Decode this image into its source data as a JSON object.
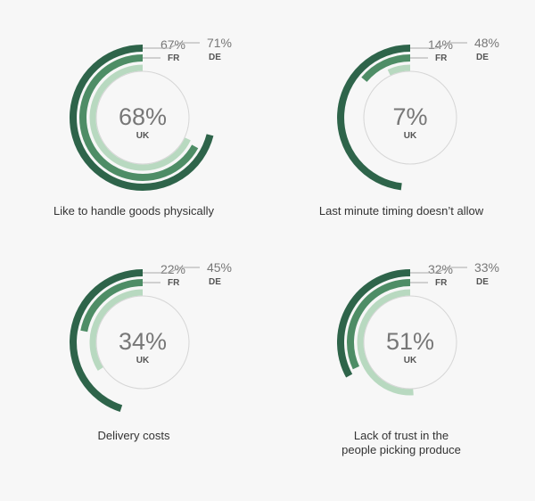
{
  "colors": {
    "uk": "#b8d9c0",
    "fr": "#4e8d66",
    "de": "#2e644a",
    "guide": "#d6d6d6",
    "value_text": "#777777",
    "label_text": "#555555",
    "leader": "#aaaaaa"
  },
  "chart_data": [
    {
      "type": "radial-bar",
      "caption_lines": [
        "Like to handle goods physically"
      ],
      "series": [
        {
          "name": "UK",
          "value": 68,
          "label": "68%"
        },
        {
          "name": "FR",
          "value": 67,
          "label": "67%"
        },
        {
          "name": "DE",
          "value": 71,
          "label": "71%"
        }
      ]
    },
    {
      "type": "radial-bar",
      "caption_lines": [
        "Last minute timing doesn’t allow"
      ],
      "series": [
        {
          "name": "UK",
          "value": 7,
          "label": "7%"
        },
        {
          "name": "FR",
          "value": 14,
          "label": "14%"
        },
        {
          "name": "DE",
          "value": 48,
          "label": "48%"
        }
      ]
    },
    {
      "type": "radial-bar",
      "caption_lines": [
        "Delivery costs"
      ],
      "series": [
        {
          "name": "UK",
          "value": 34,
          "label": "34%"
        },
        {
          "name": "FR",
          "value": 22,
          "label": "22%"
        },
        {
          "name": "DE",
          "value": 45,
          "label": "45%"
        }
      ]
    },
    {
      "type": "radial-bar",
      "caption_lines": [
        "Lack of trust in the",
        "people picking produce"
      ],
      "series": [
        {
          "name": "UK",
          "value": 51,
          "label": "51%"
        },
        {
          "name": "FR",
          "value": 32,
          "label": "32%"
        },
        {
          "name": "DE",
          "value": 33,
          "label": "33%"
        }
      ]
    }
  ]
}
